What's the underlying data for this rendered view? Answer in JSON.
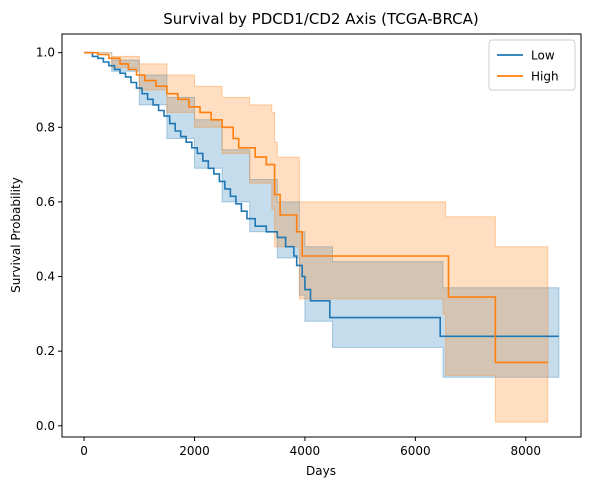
{
  "chart_data": {
    "type": "line",
    "title": "Survival by PDCD1/CD2 Axis (TCGA-BRCA)",
    "xlabel": "Days",
    "ylabel": "Survival Probability",
    "xlim": [
      -400,
      9000
    ],
    "ylim": [
      -0.03,
      1.05
    ],
    "xticks": [
      0,
      2000,
      4000,
      6000,
      8000
    ],
    "yticks": [
      0.0,
      0.2,
      0.4,
      0.6,
      0.8,
      1.0
    ],
    "legend_position": "top-right",
    "grid": false,
    "series": [
      {
        "name": "Low",
        "color": "#1f77b4",
        "steps": [
          [
            0,
            1.0
          ],
          [
            150,
            0.99
          ],
          [
            250,
            0.985
          ],
          [
            350,
            0.975
          ],
          [
            450,
            0.965
          ],
          [
            550,
            0.955
          ],
          [
            650,
            0.945
          ],
          [
            750,
            0.935
          ],
          [
            850,
            0.92
          ],
          [
            950,
            0.905
          ],
          [
            1050,
            0.89
          ],
          [
            1150,
            0.875
          ],
          [
            1250,
            0.86
          ],
          [
            1350,
            0.845
          ],
          [
            1450,
            0.83
          ],
          [
            1550,
            0.81
          ],
          [
            1650,
            0.79
          ],
          [
            1750,
            0.775
          ],
          [
            1850,
            0.76
          ],
          [
            1950,
            0.745
          ],
          [
            2050,
            0.73
          ],
          [
            2150,
            0.71
          ],
          [
            2250,
            0.69
          ],
          [
            2350,
            0.675
          ],
          [
            2450,
            0.655
          ],
          [
            2550,
            0.635
          ],
          [
            2650,
            0.615
          ],
          [
            2750,
            0.595
          ],
          [
            2850,
            0.575
          ],
          [
            2950,
            0.555
          ],
          [
            3100,
            0.535
          ],
          [
            3300,
            0.52
          ],
          [
            3500,
            0.505
          ],
          [
            3650,
            0.48
          ],
          [
            3800,
            0.455
          ],
          [
            3850,
            0.43
          ],
          [
            3950,
            0.4
          ],
          [
            4000,
            0.365
          ],
          [
            4100,
            0.335
          ],
          [
            4450,
            0.29
          ],
          [
            6450,
            0.24
          ],
          [
            8600,
            0.24
          ]
        ],
        "ci_upper": [
          [
            0,
            1.0
          ],
          [
            500,
            0.98
          ],
          [
            1000,
            0.94
          ],
          [
            1500,
            0.88
          ],
          [
            2000,
            0.82
          ],
          [
            2500,
            0.74
          ],
          [
            3000,
            0.66
          ],
          [
            3500,
            0.6
          ],
          [
            3900,
            0.52
          ],
          [
            4000,
            0.48
          ],
          [
            4500,
            0.44
          ],
          [
            6400,
            0.44
          ],
          [
            6500,
            0.37
          ],
          [
            8600,
            0.37
          ]
        ],
        "ci_lower": [
          [
            0,
            1.0
          ],
          [
            500,
            0.95
          ],
          [
            1000,
            0.86
          ],
          [
            1500,
            0.77
          ],
          [
            2000,
            0.69
          ],
          [
            2500,
            0.6
          ],
          [
            3000,
            0.52
          ],
          [
            3500,
            0.45
          ],
          [
            3900,
            0.35
          ],
          [
            4000,
            0.28
          ],
          [
            4500,
            0.21
          ],
          [
            6400,
            0.21
          ],
          [
            6500,
            0.13
          ],
          [
            8600,
            0.13
          ]
        ]
      },
      {
        "name": "High",
        "color": "#ff7f0e",
        "steps": [
          [
            0,
            1.0
          ],
          [
            250,
            0.995
          ],
          [
            450,
            0.985
          ],
          [
            650,
            0.97
          ],
          [
            800,
            0.955
          ],
          [
            950,
            0.94
          ],
          [
            1100,
            0.925
          ],
          [
            1300,
            0.91
          ],
          [
            1500,
            0.89
          ],
          [
            1700,
            0.875
          ],
          [
            1900,
            0.855
          ],
          [
            2100,
            0.84
          ],
          [
            2300,
            0.82
          ],
          [
            2500,
            0.8
          ],
          [
            2700,
            0.77
          ],
          [
            2800,
            0.745
          ],
          [
            3100,
            0.72
          ],
          [
            3300,
            0.7
          ],
          [
            3450,
            0.62
          ],
          [
            3550,
            0.565
          ],
          [
            3850,
            0.52
          ],
          [
            3950,
            0.455
          ],
          [
            6600,
            0.345
          ],
          [
            7450,
            0.17
          ],
          [
            8400,
            0.17
          ]
        ],
        "ci_upper": [
          [
            0,
            1.0
          ],
          [
            500,
            0.99
          ],
          [
            1000,
            0.97
          ],
          [
            1500,
            0.94
          ],
          [
            2000,
            0.91
          ],
          [
            2500,
            0.88
          ],
          [
            3000,
            0.86
          ],
          [
            3400,
            0.84
          ],
          [
            3450,
            0.76
          ],
          [
            3500,
            0.72
          ],
          [
            3900,
            0.6
          ],
          [
            6500,
            0.6
          ],
          [
            6550,
            0.56
          ],
          [
            7400,
            0.56
          ],
          [
            7450,
            0.48
          ],
          [
            8400,
            0.48
          ]
        ],
        "ci_lower": [
          [
            0,
            1.0
          ],
          [
            500,
            0.96
          ],
          [
            1000,
            0.9
          ],
          [
            1500,
            0.84
          ],
          [
            2000,
            0.8
          ],
          [
            2500,
            0.73
          ],
          [
            3000,
            0.65
          ],
          [
            3400,
            0.58
          ],
          [
            3450,
            0.48
          ],
          [
            3900,
            0.34
          ],
          [
            6500,
            0.3
          ],
          [
            6550,
            0.135
          ],
          [
            7400,
            0.135
          ],
          [
            7450,
            0.01
          ],
          [
            8400,
            0.01
          ]
        ]
      }
    ]
  }
}
